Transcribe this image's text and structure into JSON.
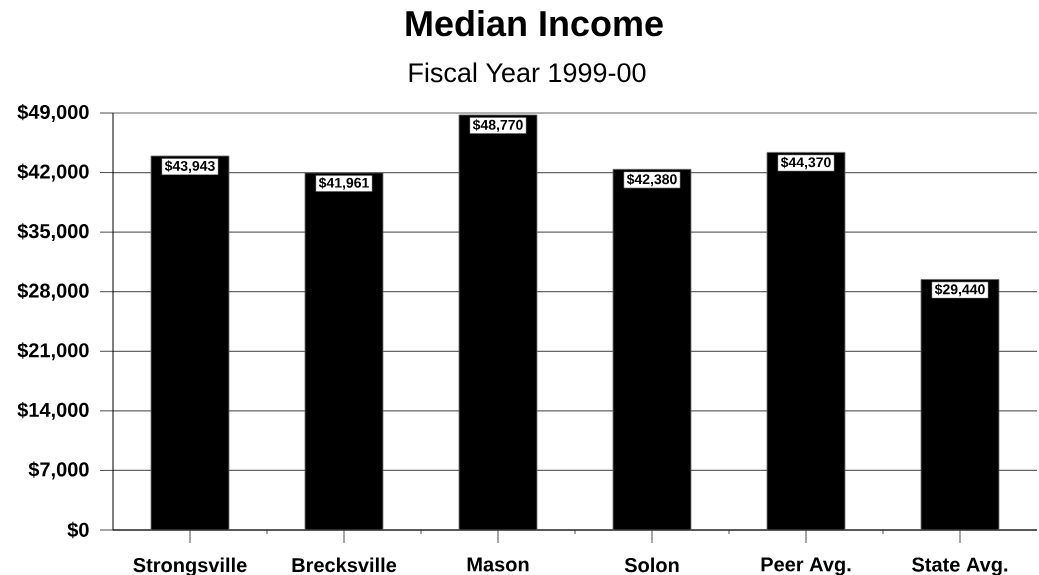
{
  "chart_data": {
    "type": "bar",
    "title": "Median Income",
    "subtitle": "Fiscal Year 1999-00",
    "categories": [
      "Strongsville",
      "Brecksville",
      "Mason",
      "Solon",
      "Peer Avg.",
      "State Avg."
    ],
    "values": [
      43943,
      41961,
      48770,
      42380,
      44370,
      29440
    ],
    "value_labels": [
      "$43,943",
      "$41,961",
      "$48,770",
      "$42,380",
      "$44,370",
      "$29,440"
    ],
    "color": "#000000",
    "ylim": [
      0,
      49000
    ],
    "yticks": [
      {
        "value": 0,
        "label": "$0"
      },
      {
        "value": 7000,
        "label": "$7,000"
      },
      {
        "value": 14000,
        "label": "$14,000"
      },
      {
        "value": 21000,
        "label": "$21,000"
      },
      {
        "value": 28000,
        "label": "$28,000"
      },
      {
        "value": 35000,
        "label": "$35,000"
      },
      {
        "value": 42000,
        "label": "$42,000"
      },
      {
        "value": 49000,
        "label": "$49,000"
      }
    ],
    "grid": "y"
  }
}
